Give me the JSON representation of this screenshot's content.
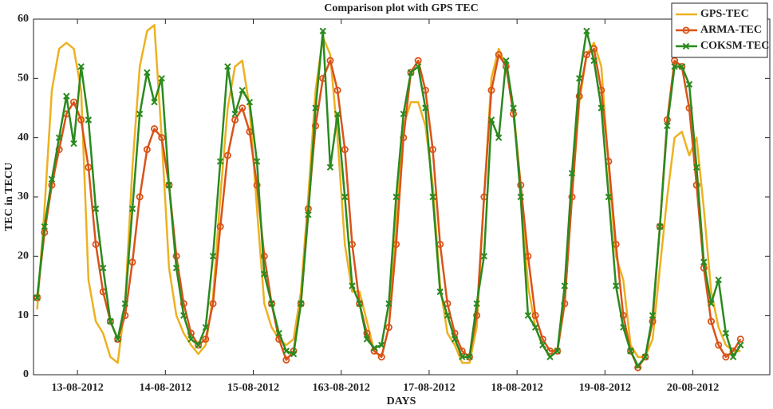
{
  "chart_data": {
    "type": "line",
    "title": "Comparison plot with GPS TEC",
    "xlabel": "DAYS",
    "ylabel": "TEC in TECU",
    "x": [
      -11,
      -9,
      -7,
      -5,
      -3,
      -1,
      1,
      3,
      5,
      7,
      9,
      11,
      13,
      15,
      17,
      19,
      21,
      23,
      25,
      27,
      29,
      31,
      33,
      35,
      37,
      39,
      41,
      43,
      45,
      47,
      49,
      51,
      53,
      55,
      57,
      59,
      61,
      63,
      65,
      67,
      69,
      71,
      73,
      75,
      77,
      79,
      81,
      83,
      85,
      87,
      89,
      91,
      93,
      95,
      97,
      99,
      101,
      103,
      105,
      107,
      109,
      111,
      113,
      115,
      117,
      119,
      121,
      123,
      125,
      127,
      129,
      131,
      133,
      135,
      137,
      139,
      141,
      143,
      145,
      147,
      149,
      151,
      153,
      155,
      157,
      159,
      161,
      163,
      165,
      167,
      169,
      171,
      173,
      175,
      177,
      179,
      181
    ],
    "series": [
      {
        "name": "GPS-TEC",
        "color": "#edb120",
        "marker": "none",
        "values": [
          11,
          28,
          48,
          55,
          56,
          55,
          48,
          16,
          9,
          7,
          3,
          2,
          12,
          35,
          52,
          58,
          59,
          40,
          18,
          10,
          7,
          5,
          3.5,
          5,
          13,
          30,
          45,
          52,
          53,
          45,
          28,
          12,
          8,
          6,
          5,
          6,
          14,
          30,
          48,
          57,
          54,
          40,
          22,
          14,
          14,
          9,
          4,
          3,
          8,
          25,
          42,
          46,
          46,
          42,
          32,
          15,
          7,
          5,
          2,
          2,
          8,
          30,
          50,
          55,
          52,
          45,
          32,
          15,
          8,
          5,
          3,
          4,
          12,
          30,
          46,
          54,
          56,
          52,
          35,
          20,
          16,
          5,
          3,
          3,
          6,
          18,
          30,
          40,
          41,
          37,
          40,
          28,
          14,
          8,
          5,
          4,
          4
        ]
      },
      {
        "name": "ARMA-TEC",
        "color": "#d95319",
        "marker": "circle",
        "values": [
          13,
          24,
          32,
          38,
          44,
          46,
          43,
          35,
          22,
          14,
          9,
          6,
          10,
          19,
          30,
          38,
          41.5,
          40,
          32,
          20,
          12,
          7,
          5,
          6,
          12,
          25,
          37,
          43,
          45,
          41,
          32,
          20,
          12,
          6,
          2.5,
          4,
          12,
          28,
          42,
          50,
          53,
          48,
          38,
          22,
          12,
          7,
          4,
          3,
          8,
          22,
          40,
          51,
          53,
          48,
          38,
          22,
          12,
          7,
          4,
          3,
          10,
          30,
          48,
          54,
          52,
          44,
          32,
          20,
          10,
          6,
          4,
          4,
          12,
          30,
          47,
          54,
          55,
          48,
          36,
          22,
          10,
          4,
          1.2,
          3,
          9,
          25,
          43,
          53,
          52,
          45,
          32,
          18,
          9,
          5,
          3,
          4,
          6
        ]
      },
      {
        "name": "COKSM-TEC",
        "color": "#2a8a1e",
        "marker": "x",
        "values": [
          13,
          25,
          33,
          40,
          47,
          39,
          52,
          43,
          28,
          18,
          9,
          6,
          12,
          28,
          44,
          51,
          46,
          50,
          32,
          18,
          10,
          6,
          5,
          8,
          20,
          36,
          52,
          44,
          48,
          46,
          36,
          17,
          12,
          7,
          4,
          3.5,
          12,
          27,
          45,
          58,
          35,
          44,
          30,
          15,
          12,
          6,
          4.5,
          5,
          12,
          30,
          44,
          51,
          52,
          45,
          30,
          14,
          10,
          6,
          3,
          3,
          12,
          20,
          43,
          40,
          53,
          45,
          30,
          10,
          8,
          5,
          3,
          4,
          15,
          34,
          50,
          58,
          53,
          45,
          30,
          15,
          8,
          4,
          1.5,
          3,
          10,
          25,
          42,
          52,
          52,
          49,
          35,
          19,
          12,
          16,
          7,
          3,
          5
        ]
      }
    ],
    "xlim": [
      -12,
      189
    ],
    "xticks": [
      {
        "value": 0,
        "label": "13-08-2012"
      },
      {
        "value": 24,
        "label": "14-08-2012"
      },
      {
        "value": 48,
        "label": "15-08-2012"
      },
      {
        "value": 72,
        "label": "163-08-2012"
      },
      {
        "value": 96,
        "label": "17-08-2012"
      },
      {
        "value": 120,
        "label": "18-08-2012"
      },
      {
        "value": 144,
        "label": "19-08-2012"
      },
      {
        "value": 168,
        "label": "20-08-2012"
      }
    ],
    "ylim": [
      0,
      60
    ],
    "yticks": [
      0,
      10,
      20,
      30,
      40,
      50,
      60
    ],
    "legend": "upper right"
  }
}
